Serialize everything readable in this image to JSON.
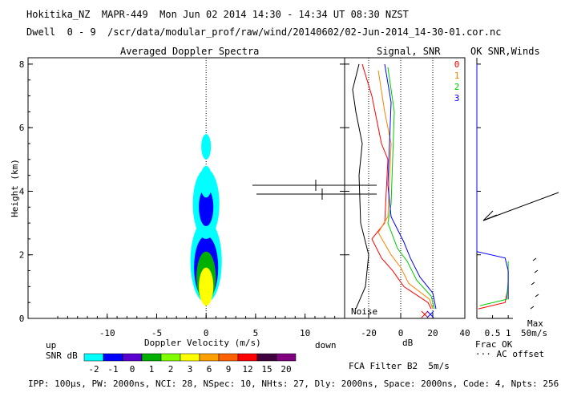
{
  "header": {
    "line1": "Hokitika_NZ  MAPR-449  Mon Jun 02 2014 14:30 - 14:34 UT 08:30 NZST",
    "line2": "Dwell  0 - 9  /scr/data/modular_prof/raw/wind/20140602/02-Jun-2014_14-30-01.cor.nc"
  },
  "footer": {
    "params": "IPP: 100μs, PW: 2000ns, NCI: 28, NSpec: 10, NHts: 27, Dly: 2000ns, Space: 2000ns, Code: 4, Npts: 256",
    "fca": "FCA Filter B2  5m/s"
  },
  "colors": {
    "snr_scale": [
      "#00ffff",
      "#0000ff",
      "#5a00d0",
      "#00b000",
      "#80ff00",
      "#ffff00",
      "#ffa000",
      "#ff6000",
      "#ff0000",
      "#400040",
      "#800080"
    ],
    "beams": [
      "#ff0000",
      "#ff8000",
      "#00cc00",
      "#0000ff"
    ]
  },
  "chart_data": [
    {
      "type": "heatmap",
      "title": "Averaged Doppler Spectra",
      "xlabel": "Doppler Velocity (m/s)",
      "ylabel": "Height (km)",
      "xlim": [
        -18,
        14
      ],
      "ylim": [
        0,
        8.2
      ],
      "xticks": [
        "-10",
        "-5",
        "0",
        "5",
        "10"
      ],
      "yticks": [
        "0",
        "2",
        "4",
        "6",
        "8"
      ],
      "direction_left": "up",
      "direction_right": "down",
      "colorbar": {
        "label": "SNR dB",
        "ticks": [
          "-2",
          "-1",
          "0",
          "1",
          "2",
          "3",
          "6",
          "9",
          "12",
          "15",
          "20"
        ]
      }
    },
    {
      "type": "line",
      "title": "Signal, SNR",
      "xlabel": "dB",
      "xticks": [
        "-20",
        "0",
        "20",
        "40"
      ],
      "noise_label": "Noise",
      "xlim": [
        -35,
        40
      ],
      "ylim": [
        0,
        8.2
      ],
      "series": [
        {
          "name": "0",
          "color": "#ff0000",
          "x": [
            19,
            17,
            2,
            -5,
            -12,
            -18,
            -10,
            -8,
            -12,
            -18,
            -24
          ],
          "y": [
            0.3,
            0.5,
            1.0,
            1.5,
            1.9,
            2.5,
            3.0,
            5.0,
            5.5,
            7.0,
            8.0
          ]
        },
        {
          "name": "1",
          "color": "#ff8000",
          "x": [
            20,
            18,
            5,
            0,
            -6,
            -14,
            -8,
            -6,
            -10,
            -14
          ],
          "y": [
            0.3,
            0.6,
            1.1,
            1.6,
            2.0,
            2.7,
            3.2,
            5.5,
            6.5,
            7.8
          ]
        },
        {
          "name": "2",
          "color": "#00cc00",
          "x": [
            21,
            19,
            10,
            4,
            -2,
            -8,
            -6,
            -4,
            -8
          ],
          "y": [
            0.3,
            0.7,
            1.2,
            1.8,
            2.2,
            3.0,
            3.6,
            6.5,
            7.9
          ]
        },
        {
          "name": "3",
          "color": "#0000ff",
          "x": [
            22,
            20,
            12,
            6,
            2,
            -6,
            -8,
            -6,
            -10
          ],
          "y": [
            0.3,
            0.8,
            1.3,
            1.9,
            2.4,
            3.2,
            4.2,
            6.8,
            8.0
          ]
        }
      ],
      "noise_x": [
        -28,
        -22,
        -20,
        -25,
        -26,
        -24,
        -28,
        -30,
        -26
      ],
      "noise_y": [
        0.3,
        1.0,
        2.0,
        3.0,
        4.5,
        5.5,
        6.5,
        7.2,
        8.0
      ]
    },
    {
      "type": "line",
      "title": "OK SNR,Winds",
      "xlabel": "Frac OK",
      "xticks": [
        "0.5",
        "1"
      ],
      "legend": [
        "0",
        "1",
        "2",
        "3"
      ],
      "wind_scale_label": "Max",
      "wind_scale_value": "50m/s",
      "ac_offset_label": "··· AC offset",
      "xlim": [
        0,
        1.15
      ],
      "ylim": [
        0,
        8.2
      ],
      "series": [
        {
          "name": "0",
          "color": "#ff0000",
          "x": [
            0.05,
            0.9,
            1.0
          ],
          "y": [
            0.3,
            0.5,
            1.0
          ]
        },
        {
          "name": "2",
          "color": "#00cc00",
          "x": [
            0.1,
            0.95,
            1.0,
            1.0
          ],
          "y": [
            0.4,
            0.6,
            1.2,
            1.8
          ]
        },
        {
          "name": "3",
          "color": "#0000ff",
          "x": [
            0.0,
            0.0,
            0.9,
            1.0,
            1.0
          ],
          "y": [
            8.0,
            2.1,
            1.9,
            1.5,
            0.6
          ]
        }
      ]
    }
  ]
}
